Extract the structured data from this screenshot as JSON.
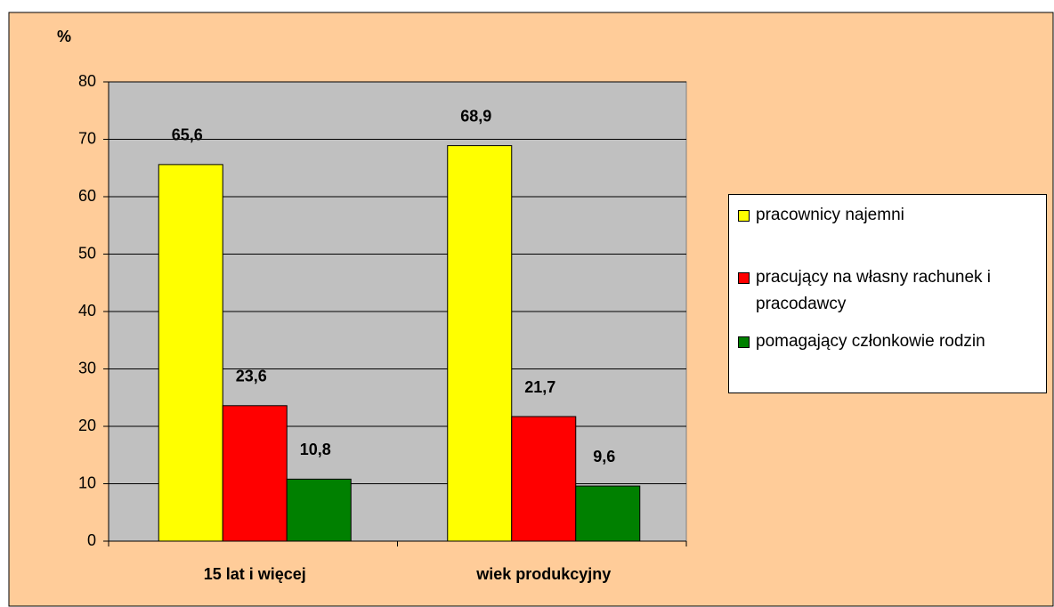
{
  "chart_data": {
    "type": "bar",
    "y_axis_label": "%",
    "categories": [
      "15 lat i więcej",
      "wiek produkcyjny"
    ],
    "series": [
      {
        "name": "pracownicy najemni",
        "color": "#ffff00",
        "values": [
          65.6,
          68.9
        ],
        "value_labels": [
          "65,6",
          "68,9"
        ]
      },
      {
        "name": "pracujący na własny rachunek i pracodawcy",
        "color": "#ff0000",
        "values": [
          23.6,
          21.7
        ],
        "value_labels": [
          "23,6",
          "21,7"
        ]
      },
      {
        "name": "pomagający członkowie rodzin",
        "color": "#008000",
        "values": [
          10.8,
          9.6
        ],
        "value_labels": [
          "10,8",
          "9,6"
        ]
      }
    ],
    "ylim": [
      0,
      80
    ],
    "yticks": [
      0,
      10,
      20,
      30,
      40,
      50,
      60,
      70,
      80
    ],
    "grid": true,
    "plot_background": "#c0c0c0",
    "background": "#ffcc99",
    "legend": "right"
  }
}
